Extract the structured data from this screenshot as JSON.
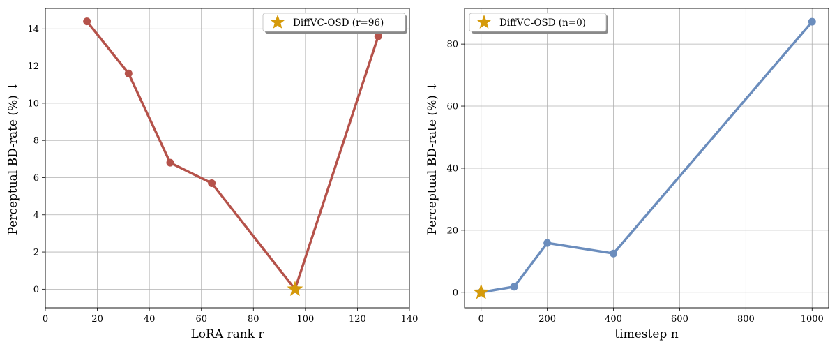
{
  "chart_data": [
    {
      "type": "line",
      "xlabel": "LoRA rank r",
      "ylabel": "Perceptual BD-rate (%) ↓",
      "xlim": [
        0,
        140
      ],
      "ylim": [
        -1,
        15.1
      ],
      "xticks": [
        0,
        20,
        40,
        60,
        80,
        100,
        120,
        140
      ],
      "yticks": [
        0,
        2,
        4,
        6,
        8,
        10,
        12,
        14
      ],
      "grid": true,
      "color": "#b5524a",
      "series": [
        {
          "name": "BD-rate",
          "x": [
            16,
            32,
            48,
            64,
            96,
            128
          ],
          "y": [
            14.4,
            11.6,
            6.8,
            5.7,
            0.0,
            13.6
          ]
        }
      ],
      "highlight": {
        "label": "DiffVC-OSD (r=96)",
        "x": 96,
        "y": 0.0,
        "marker": "star",
        "color": "#d59a0a"
      },
      "legend_position": "top-right"
    },
    {
      "type": "line",
      "xlabel": "timestep n",
      "ylabel": "Perceptual BD-rate (%) ↓",
      "xlim": [
        -50,
        1050
      ],
      "ylim": [
        -5,
        91.5
      ],
      "xticks": [
        0,
        200,
        400,
        600,
        800,
        1000
      ],
      "yticks": [
        0,
        20,
        40,
        60,
        80
      ],
      "grid": true,
      "color": "#6b8dbd",
      "series": [
        {
          "name": "BD-rate",
          "x": [
            0,
            100,
            200,
            400,
            1000
          ],
          "y": [
            0.0,
            1.8,
            15.9,
            12.5,
            87.2
          ]
        }
      ],
      "highlight": {
        "label": "DiffVC-OSD (n=0)",
        "x": 0,
        "y": 0.0,
        "marker": "star",
        "color": "#d59a0a"
      },
      "legend_position": "top-left"
    }
  ]
}
